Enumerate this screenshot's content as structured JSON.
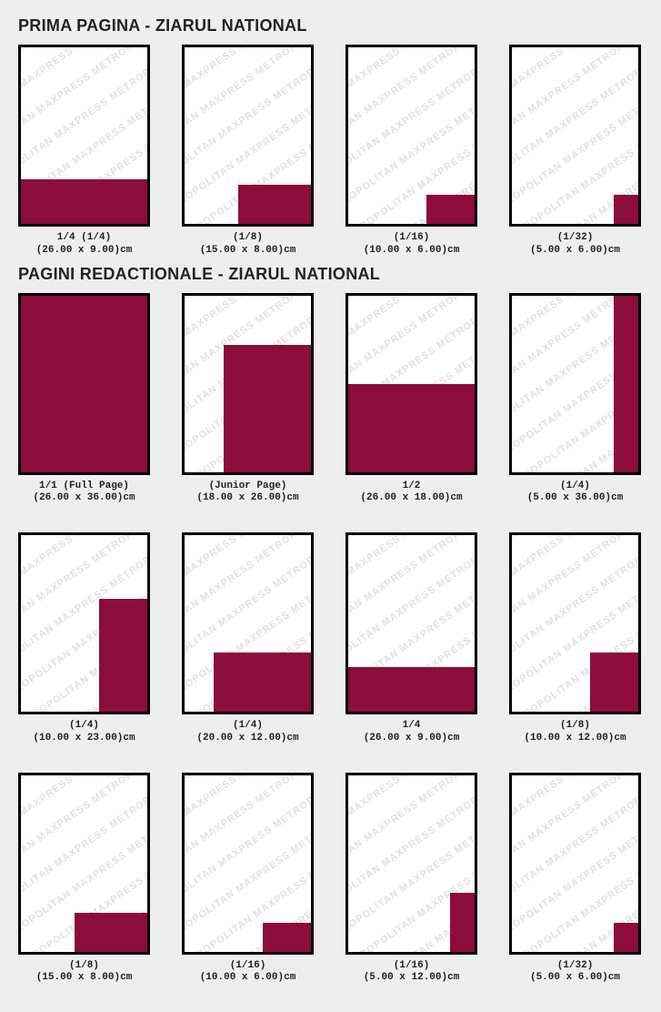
{
  "canvas": {
    "page_w_cm": 26.0,
    "page_h_cm": 36.0
  },
  "colors": {
    "ad_fill": "#8c0c3c",
    "frame_border": "#000000",
    "page_bg": "#ffffff",
    "body_bg": "#eeeeee",
    "watermark": "#e1e1e1",
    "text": "#222222"
  },
  "watermark_text": "METROPOLITAN MAXPRESS METROPOLITAN MAXPRESS",
  "sections": [
    {
      "title": "PRIMA PAGINA - ZIARUL NATIONAL",
      "items": [
        {
          "label_top": "1/4 (1/4)",
          "dims": "(26.00 x 9.00)cm",
          "anchor": "bl",
          "w_cm": 26.0,
          "h_cm": 9.0
        },
        {
          "label_top": "(1/8)",
          "dims": "(15.00 x 8.00)cm",
          "anchor": "br",
          "w_cm": 15.0,
          "h_cm": 8.0
        },
        {
          "label_top": "(1/16)",
          "dims": "(10.00 x 6.00)cm",
          "anchor": "br",
          "w_cm": 10.0,
          "h_cm": 6.0
        },
        {
          "label_top": "(1/32)",
          "dims": "(5.00 x 6.00)cm",
          "anchor": "br",
          "w_cm": 5.0,
          "h_cm": 6.0
        }
      ]
    },
    {
      "title": "PAGINI REDACTIONALE - ZIARUL NATIONAL",
      "items": [
        {
          "label_top": "1/1 (Full Page)",
          "dims": "(26.00 x 36.00)cm",
          "anchor": "bl",
          "w_cm": 26.0,
          "h_cm": 36.0
        },
        {
          "label_top": "(Junior Page)",
          "dims": "(18.00 x 26.00)cm",
          "anchor": "br",
          "w_cm": 18.0,
          "h_cm": 26.0
        },
        {
          "label_top": "1/2",
          "dims": "(26.00 x 18.00)cm",
          "anchor": "bl",
          "w_cm": 26.0,
          "h_cm": 18.0
        },
        {
          "label_top": "(1/4)",
          "dims": "(5.00 x 36.00)cm",
          "anchor": "br",
          "w_cm": 5.0,
          "h_cm": 36.0
        },
        {
          "label_top": "(1/4)",
          "dims": "(10.00 x 23.00)cm",
          "anchor": "br",
          "w_cm": 10.0,
          "h_cm": 23.0
        },
        {
          "label_top": "(1/4)",
          "dims": "(20.00 x 12.00)cm",
          "anchor": "br",
          "w_cm": 20.0,
          "h_cm": 12.0
        },
        {
          "label_top": "1/4",
          "dims": "(26.00 x 9.00)cm",
          "anchor": "bl",
          "w_cm": 26.0,
          "h_cm": 9.0
        },
        {
          "label_top": "(1/8)",
          "dims": "(10.00 x 12.00)cm",
          "anchor": "br",
          "w_cm": 10.0,
          "h_cm": 12.0
        },
        {
          "label_top": "(1/8)",
          "dims": "(15.00 x 8.00)cm",
          "anchor": "br",
          "w_cm": 15.0,
          "h_cm": 8.0
        },
        {
          "label_top": "(1/16)",
          "dims": "(10.00 x 6.00)cm",
          "anchor": "br",
          "w_cm": 10.0,
          "h_cm": 6.0
        },
        {
          "label_top": "(1/16)",
          "dims": "(5.00 x 12.00)cm",
          "anchor": "br",
          "w_cm": 5.0,
          "h_cm": 12.0
        },
        {
          "label_top": "(1/32)",
          "dims": "(5.00 x 6.00)cm",
          "anchor": "br",
          "w_cm": 5.0,
          "h_cm": 6.0
        }
      ]
    }
  ]
}
